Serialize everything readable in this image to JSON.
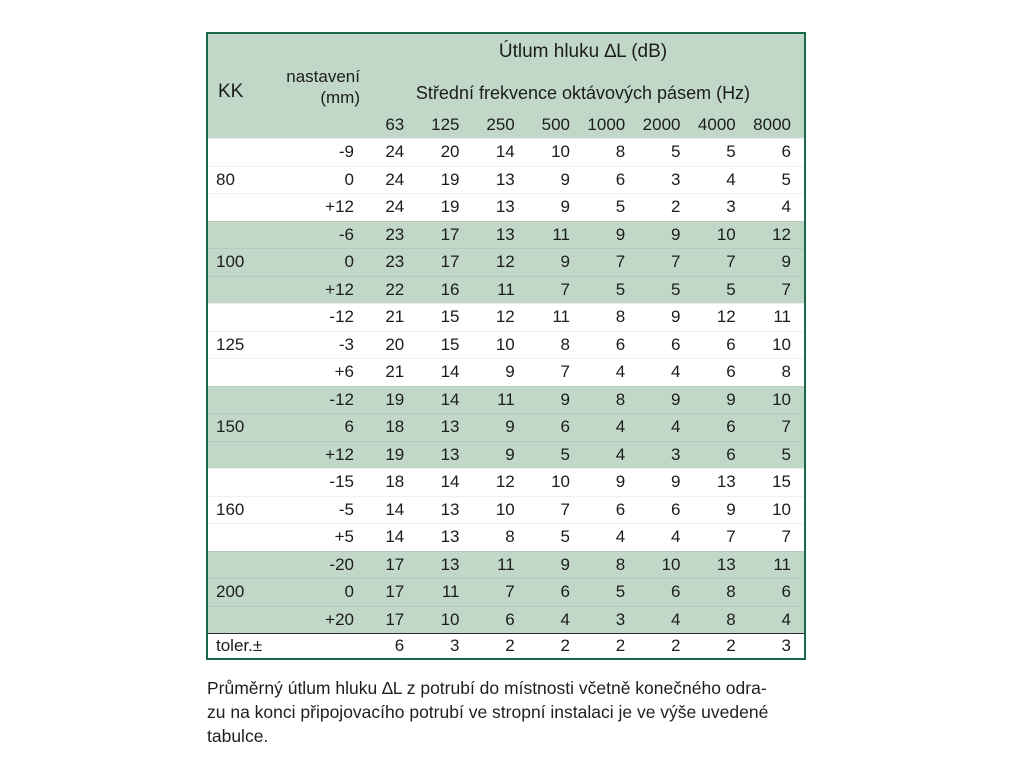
{
  "colors": {
    "band_green": "#c1d8c9",
    "border_green": "#17694a",
    "text": "#1c1c1c"
  },
  "table": {
    "title": "Útlum hluku ∆L (dB)",
    "kk_label": "KK",
    "nastaveni_label_line1": "nastavení",
    "nastaveni_label_line2": "(mm)",
    "freq_caption": "Střední frekvence oktávových pásem (Hz)",
    "frequencies": [
      "63",
      "125",
      "250",
      "500",
      "1000",
      "2000",
      "4000",
      "8000"
    ],
    "groups": [
      {
        "kk": "80",
        "shade": false,
        "rows": [
          {
            "nastaveni": "-9",
            "values": [
              24,
              20,
              14,
              10,
              8,
              5,
              5,
              6
            ]
          },
          {
            "nastaveni": "0",
            "values": [
              24,
              19,
              13,
              9,
              6,
              3,
              4,
              5
            ]
          },
          {
            "nastaveni": "+12",
            "values": [
              24,
              19,
              13,
              9,
              5,
              2,
              3,
              4
            ]
          }
        ]
      },
      {
        "kk": "100",
        "shade": true,
        "rows": [
          {
            "nastaveni": "-6",
            "values": [
              23,
              17,
              13,
              11,
              9,
              9,
              10,
              12
            ]
          },
          {
            "nastaveni": "0",
            "values": [
              23,
              17,
              12,
              9,
              7,
              7,
              7,
              9
            ]
          },
          {
            "nastaveni": "+12",
            "values": [
              22,
              16,
              11,
              7,
              5,
              5,
              5,
              7
            ]
          }
        ]
      },
      {
        "kk": "125",
        "shade": false,
        "rows": [
          {
            "nastaveni": "-12",
            "values": [
              21,
              15,
              12,
              11,
              8,
              9,
              12,
              11
            ]
          },
          {
            "nastaveni": "-3",
            "values": [
              20,
              15,
              10,
              8,
              6,
              6,
              6,
              10
            ]
          },
          {
            "nastaveni": "+6",
            "values": [
              21,
              14,
              9,
              7,
              4,
              4,
              6,
              8
            ]
          }
        ]
      },
      {
        "kk": "150",
        "shade": true,
        "rows": [
          {
            "nastaveni": "-12",
            "values": [
              19,
              14,
              11,
              9,
              8,
              9,
              9,
              10
            ]
          },
          {
            "nastaveni": "6",
            "values": [
              18,
              13,
              9,
              6,
              4,
              4,
              6,
              7
            ]
          },
          {
            "nastaveni": "+12",
            "values": [
              19,
              13,
              9,
              5,
              4,
              3,
              6,
              5
            ]
          }
        ]
      },
      {
        "kk": "160",
        "shade": false,
        "rows": [
          {
            "nastaveni": "-15",
            "values": [
              18,
              14,
              12,
              10,
              9,
              9,
              13,
              15
            ]
          },
          {
            "nastaveni": "-5",
            "values": [
              14,
              13,
              10,
              7,
              6,
              6,
              9,
              10
            ]
          },
          {
            "nastaveni": "+5",
            "values": [
              14,
              13,
              8,
              5,
              4,
              4,
              7,
              7
            ]
          }
        ]
      },
      {
        "kk": "200",
        "shade": true,
        "rows": [
          {
            "nastaveni": "-20",
            "values": [
              17,
              13,
              11,
              9,
              8,
              10,
              13,
              11
            ]
          },
          {
            "nastaveni": "0",
            "values": [
              17,
              11,
              7,
              6,
              5,
              6,
              8,
              6
            ]
          },
          {
            "nastaveni": "+20",
            "values": [
              17,
              10,
              6,
              4,
              3,
              4,
              8,
              4
            ]
          }
        ]
      }
    ],
    "tolerance_row": {
      "label": "toler.±",
      "values": [
        6,
        3,
        2,
        2,
        2,
        2,
        2,
        3
      ]
    }
  },
  "caption": {
    "lines": [
      "Průměrný útlum hluku ∆L z potrubí do místnosti včetně konečného odra-",
      "zu na konci připojovacího potrubí ve stropní instalaci je ve výše uvedené",
      "tabulce."
    ]
  }
}
